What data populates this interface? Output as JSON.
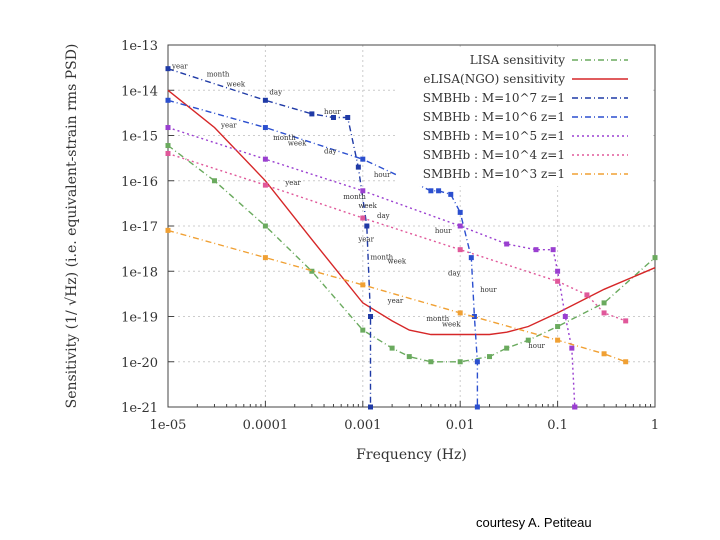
{
  "credit": "courtesy A. Petiteau",
  "chart_data": {
    "type": "line",
    "xlabel": "Frequency (Hz)",
    "ylabel": "Sensitivity (1/ √Hz)  (i.e. equivalent-strain rms PSD)",
    "xscale": "log",
    "yscale": "log",
    "xlim": [
      1e-05,
      1
    ],
    "ylim": [
      1e-21,
      1e-13
    ],
    "xticks": [
      "1e-05",
      "0.0001",
      "0.001",
      "0.01",
      "0.1",
      "1"
    ],
    "yticks": [
      "1e-13",
      "1e-14",
      "1e-15",
      "1e-16",
      "1e-17",
      "1e-18",
      "1e-19",
      "1e-20",
      "1e-21"
    ],
    "grid": true,
    "legend_position": "top-right",
    "series": [
      {
        "name": "LISA sensitivity",
        "color": "#6aaa5e",
        "style": "dashdot",
        "x": [
          1e-05,
          3e-05,
          0.0001,
          0.0003,
          0.001,
          0.002,
          0.003,
          0.005,
          0.01,
          0.02,
          0.03,
          0.05,
          0.1,
          0.3,
          1
        ],
        "y": [
          6e-16,
          1e-16,
          1e-17,
          1e-18,
          5e-20,
          2e-20,
          1.3e-20,
          1e-20,
          1e-20,
          1.3e-20,
          2e-20,
          3e-20,
          6e-20,
          2e-19,
          2e-18
        ]
      },
      {
        "name": "eLISA(NGO) sensitivity",
        "color": "#d62728",
        "style": "solid",
        "x": [
          1e-05,
          3e-05,
          0.0001,
          0.0003,
          0.001,
          0.002,
          0.003,
          0.005,
          0.01,
          0.02,
          0.03,
          0.05,
          0.1,
          0.3,
          1
        ],
        "y": [
          1e-14,
          1.5e-15,
          1e-16,
          5e-18,
          2e-19,
          8e-20,
          5e-20,
          4e-20,
          4e-20,
          4e-20,
          4.5e-20,
          6e-20,
          1.2e-19,
          4e-19,
          1.2e-18
        ]
      },
      {
        "name": "SMBHb : M=10^7 z=1",
        "color": "#1f3aa6",
        "style": "dashdot",
        "x": [
          1e-05,
          0.0001,
          0.0003,
          0.0005,
          0.0007,
          0.0009,
          0.0011,
          0.0012,
          0.0012
        ],
        "y": [
          3e-14,
          6e-15,
          3e-15,
          2.5e-15,
          2.5e-15,
          2e-16,
          1e-17,
          1e-19,
          1e-21
        ]
      },
      {
        "name": "SMBHb : M=10^6 z=1",
        "color": "#2b4fcf",
        "style": "dashdot",
        "x": [
          1e-05,
          0.0001,
          0.001,
          0.003,
          0.005,
          0.006,
          0.008,
          0.01,
          0.013,
          0.014,
          0.015,
          0.015
        ],
        "y": [
          6e-15,
          1.5e-15,
          3e-16,
          1e-16,
          6e-17,
          6e-17,
          5e-17,
          2e-17,
          2e-18,
          1e-19,
          1e-20,
          1e-21
        ]
      },
      {
        "name": "SMBHb : M=10^5 z=1",
        "color": "#9a3fd0",
        "style": "dotted",
        "x": [
          1e-05,
          0.0001,
          0.001,
          0.01,
          0.03,
          0.06,
          0.09,
          0.1,
          0.12,
          0.14,
          0.15,
          0.15
        ],
        "y": [
          1.5e-15,
          3e-16,
          6e-17,
          1e-17,
          4e-18,
          3e-18,
          3e-18,
          1e-18,
          1e-19,
          2e-20,
          1e-21,
          1e-21
        ]
      },
      {
        "name": "SMBHb : M=10^4 z=1",
        "color": "#e0589a",
        "style": "dotted",
        "x": [
          1e-05,
          0.0001,
          0.001,
          0.01,
          0.1,
          0.2,
          0.3,
          0.5
        ],
        "y": [
          4e-16,
          8e-17,
          1.5e-17,
          3e-18,
          6e-19,
          3e-19,
          1.2e-19,
          8e-20
        ]
      },
      {
        "name": "SMBHb : M=10^3 z=1",
        "color": "#f0a033",
        "style": "dashdot",
        "x": [
          1e-05,
          0.0001,
          0.001,
          0.01,
          0.1,
          0.3,
          0.5
        ],
        "y": [
          8e-18,
          2e-18,
          5e-19,
          1.2e-19,
          3e-20,
          1.5e-20,
          1e-20
        ]
      }
    ],
    "annotations": [
      {
        "text": "year",
        "x": 1.1e-05,
        "y": 3e-14
      },
      {
        "text": "month",
        "x": 2.5e-05,
        "y": 2e-14
      },
      {
        "text": "week",
        "x": 4e-05,
        "y": 1.2e-14
      },
      {
        "text": "day",
        "x": 0.00011,
        "y": 8e-15
      },
      {
        "text": "hour",
        "x": 0.0004,
        "y": 3e-15
      },
      {
        "text": "year",
        "x": 3.5e-05,
        "y": 1.5e-15
      },
      {
        "text": "month",
        "x": 0.00012,
        "y": 8e-16
      },
      {
        "text": "week",
        "x": 0.00017,
        "y": 6e-16
      },
      {
        "text": "day",
        "x": 0.0004,
        "y": 4e-16
      },
      {
        "text": "hour",
        "x": 0.0013,
        "y": 1.2e-16
      },
      {
        "text": "year",
        "x": 0.00016,
        "y": 8e-17
      },
      {
        "text": "month",
        "x": 0.00063,
        "y": 4e-17
      },
      {
        "text": "week",
        "x": 0.0009,
        "y": 2.5e-17
      },
      {
        "text": "day",
        "x": 0.0014,
        "y": 1.5e-17
      },
      {
        "text": "hour",
        "x": 0.0055,
        "y": 7e-18
      },
      {
        "text": "year",
        "x": 0.0009,
        "y": 4.5e-18
      },
      {
        "text": "month",
        "x": 0.0012,
        "y": 1.8e-18
      },
      {
        "text": "week",
        "x": 0.0018,
        "y": 1.5e-18
      },
      {
        "text": "day",
        "x": 0.0075,
        "y": 8e-19
      },
      {
        "text": "hour",
        "x": 0.016,
        "y": 3.5e-19
      },
      {
        "text": "year",
        "x": 0.0018,
        "y": 2e-19
      },
      {
        "text": "month",
        "x": 0.0045,
        "y": 8e-20
      },
      {
        "text": "week",
        "x": 0.0065,
        "y": 6e-20
      },
      {
        "text": "hour",
        "x": 0.05,
        "y": 2e-20
      }
    ]
  }
}
